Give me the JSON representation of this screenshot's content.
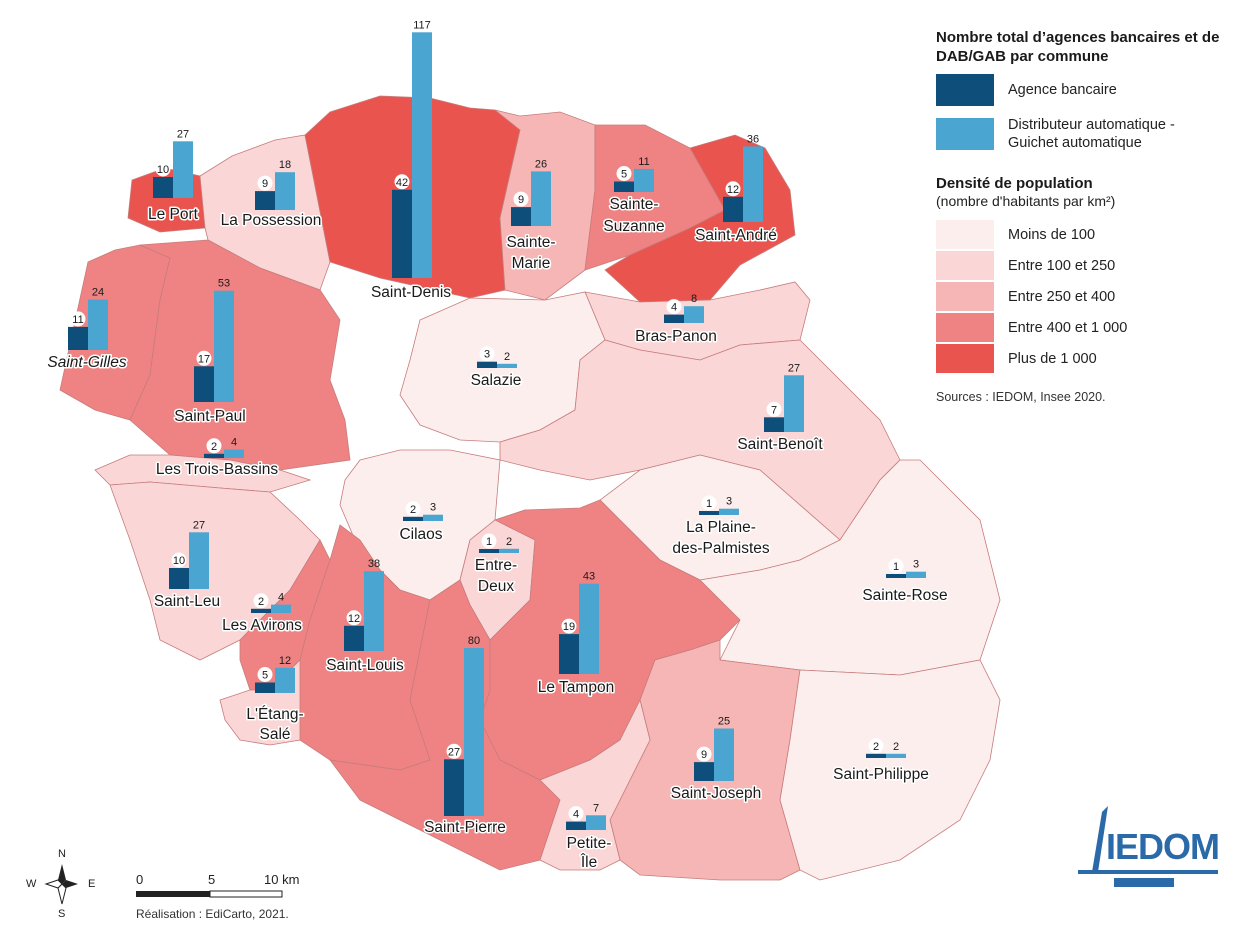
{
  "colors": {
    "agency": "#0d4f7a",
    "atm": "#4aa6d0",
    "density": [
      "#fdeeee",
      "#fad6d7",
      "#f6b6b6",
      "#ef8383",
      "#e9544f"
    ],
    "border": "#c77c7c"
  },
  "legend": {
    "title": "Nombre total d’agences bancaires et de DAB/GAB par commune",
    "agency_label": "Agence bancaire",
    "atm_label": "Distributeur automatique - Guichet automatique",
    "density_title": "Densité de population",
    "density_subtitle": "(nombre d'habitants par km²)",
    "density_classes": [
      "Moins de 100",
      "Entre 100 et 250",
      "Entre 250 et 400",
      "Entre 400 et 1 000",
      "Plus de 1 000"
    ],
    "sources": "Sources : IEDOM, Insee 2020."
  },
  "communes": [
    {
      "name": "Le Port",
      "agencies": 10,
      "atms": 27,
      "density_class": 4
    },
    {
      "name": "La Possession",
      "agencies": 9,
      "atms": 18,
      "density_class": 1
    },
    {
      "name": "Saint-Denis",
      "agencies": 42,
      "atms": 117,
      "density_class": 4
    },
    {
      "name": "Sainte-Marie",
      "agencies": 9,
      "atms": 26,
      "density_class": 2
    },
    {
      "name": "Sainte-Suzanne",
      "agencies": 5,
      "atms": 11,
      "density_class": 3
    },
    {
      "name": "Saint-André",
      "agencies": 12,
      "atms": 36,
      "density_class": 4
    },
    {
      "name": "Saint-Gilles",
      "agencies": 11,
      "atms": 24,
      "density_class": 3
    },
    {
      "name": "Saint-Paul",
      "agencies": 17,
      "atms": 53,
      "density_class": 3
    },
    {
      "name": "Bras-Panon",
      "agencies": 4,
      "atms": 8,
      "density_class": 1
    },
    {
      "name": "Salazie",
      "agencies": 3,
      "atms": 2,
      "density_class": 0
    },
    {
      "name": "Saint-Benoît",
      "agencies": 7,
      "atms": 27,
      "density_class": 1
    },
    {
      "name": "Les Trois-Bassins",
      "agencies": 2,
      "atms": 4,
      "density_class": 1
    },
    {
      "name": "Cilaos",
      "agencies": 2,
      "atms": 3,
      "density_class": 0
    },
    {
      "name": "Entre-Deux",
      "agencies": 1,
      "atms": 2,
      "density_class": 1
    },
    {
      "name": "La Plaine-des-Palmistes",
      "agencies": 1,
      "atms": 3,
      "density_class": 0
    },
    {
      "name": "Saint-Leu",
      "agencies": 10,
      "atms": 27,
      "density_class": 1
    },
    {
      "name": "Les Avirons",
      "agencies": 2,
      "atms": 4,
      "density_class": 3
    },
    {
      "name": "Saint-Louis",
      "agencies": 12,
      "atms": 38,
      "density_class": 3
    },
    {
      "name": "Le Tampon",
      "agencies": 19,
      "atms": 43,
      "density_class": 3
    },
    {
      "name": "Sainte-Rose",
      "agencies": 1,
      "atms": 3,
      "density_class": 0
    },
    {
      "name": "L'Étang-Salé",
      "agencies": 5,
      "atms": 12,
      "density_class": 1
    },
    {
      "name": "Saint-Pierre",
      "agencies": 27,
      "atms": 80,
      "density_class": 3
    },
    {
      "name": "Saint-Joseph",
      "agencies": 9,
      "atms": 25,
      "density_class": 2
    },
    {
      "name": "Petite-Île",
      "agencies": 4,
      "atms": 7,
      "density_class": 1
    },
    {
      "name": "Saint-Philippe",
      "agencies": 2,
      "atms": 2,
      "density_class": 0
    }
  ],
  "scale": {
    "labels": [
      "0",
      "5",
      "10 km"
    ]
  },
  "compass": {
    "n": "N",
    "s": "S",
    "e": "E",
    "w": "W"
  },
  "credit": "Réalisation : EdiCarto, 2021.",
  "logo": {
    "text": "IEDOM"
  }
}
